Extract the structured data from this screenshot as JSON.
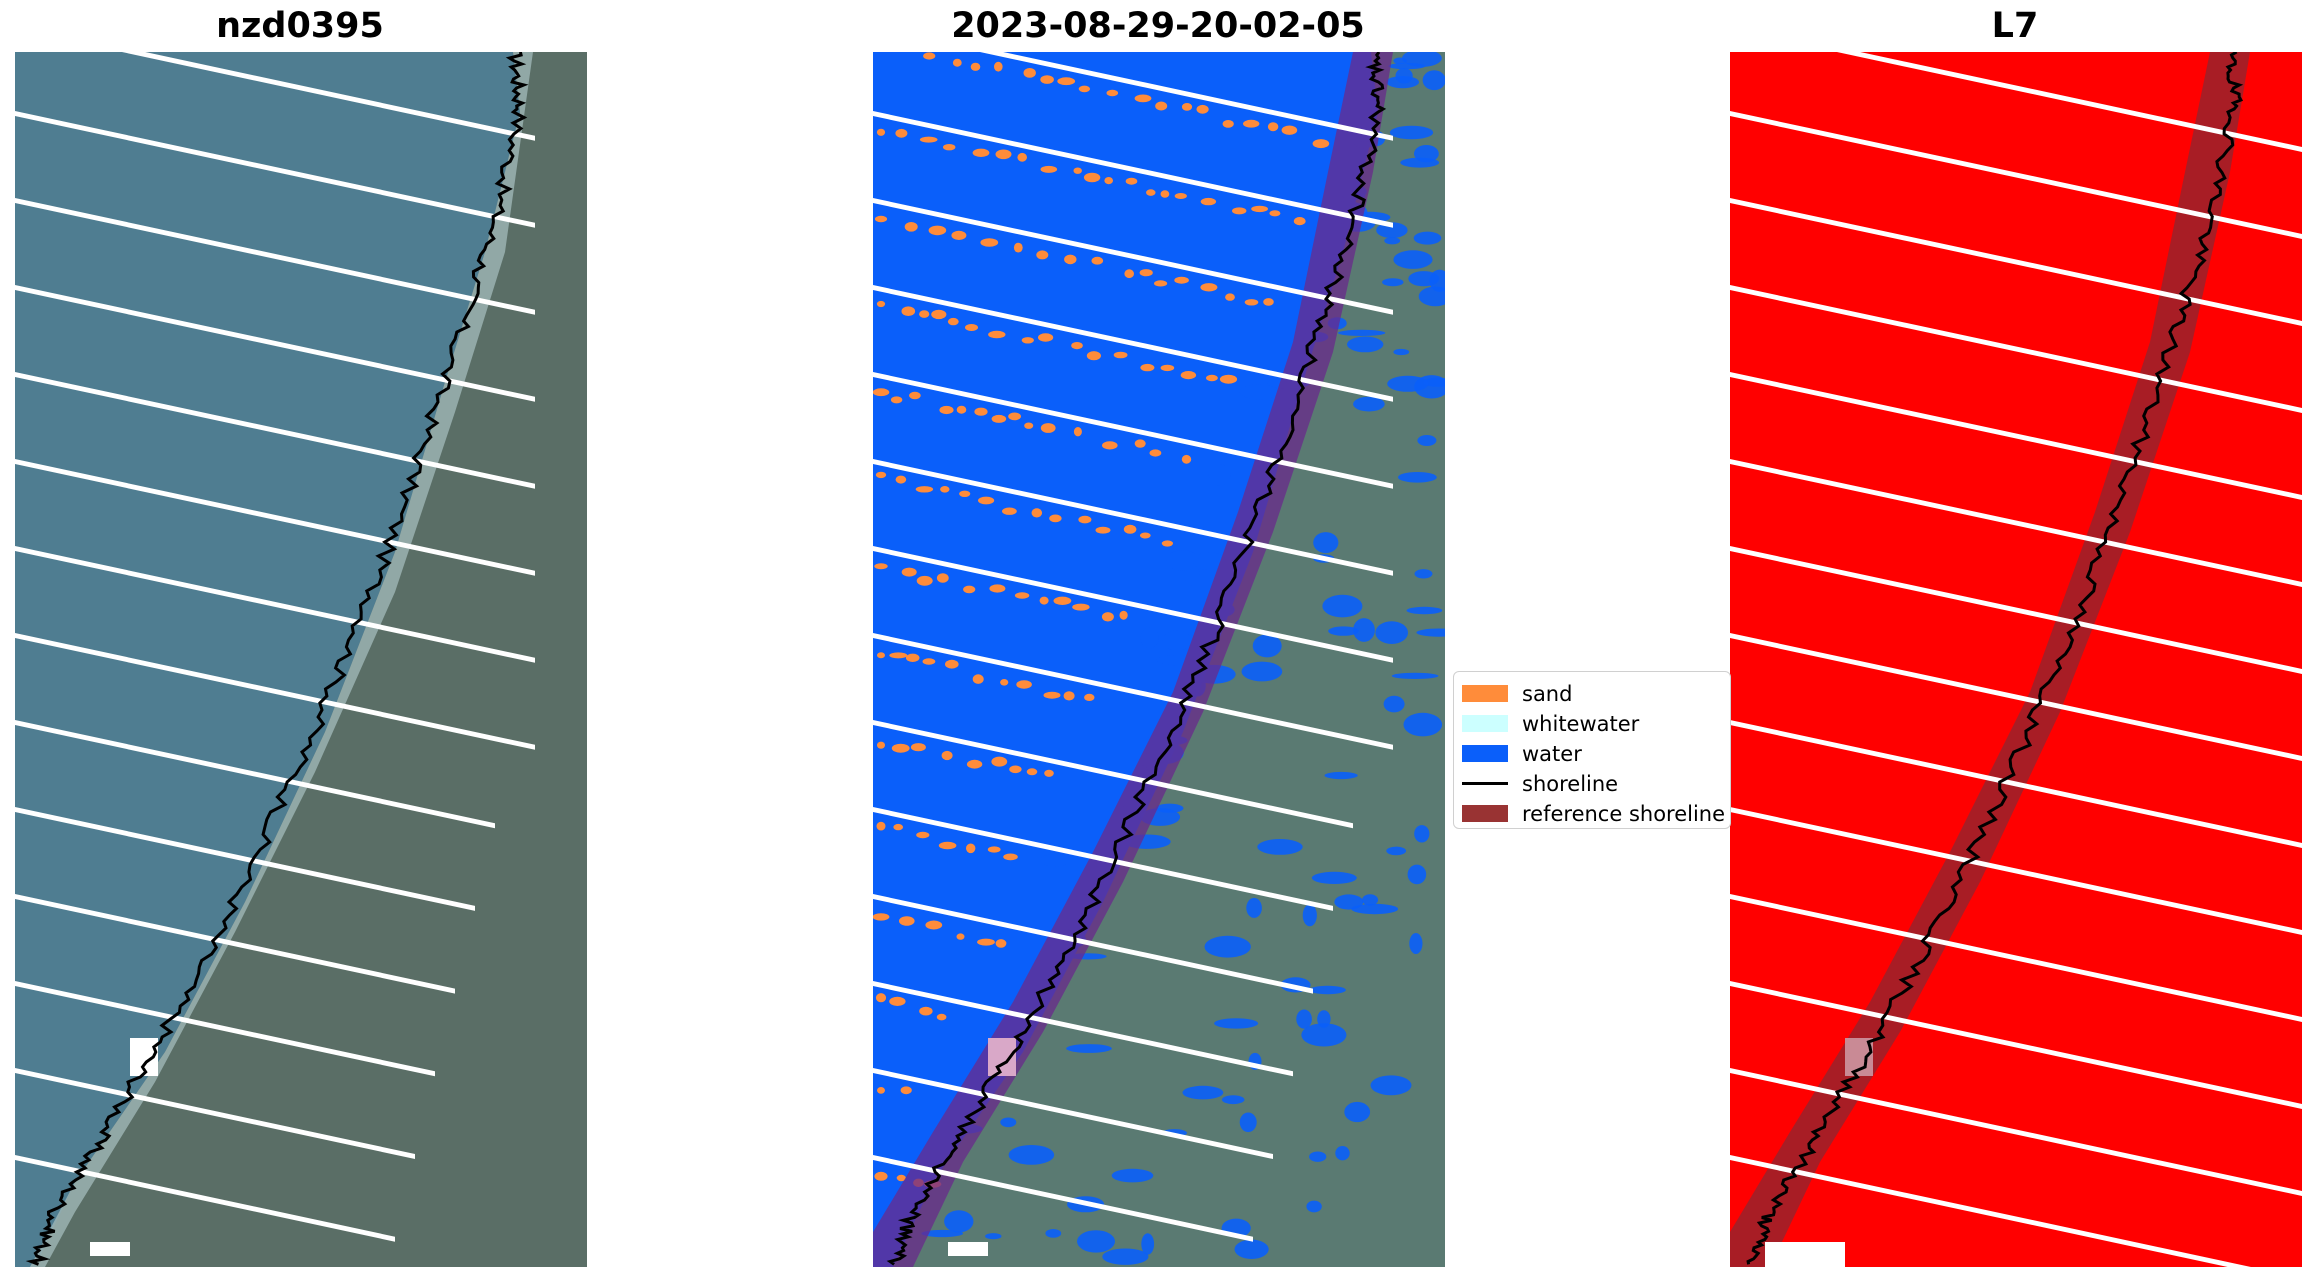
{
  "panels": [
    {
      "title": "nzd0395"
    },
    {
      "title": "2023-08-29-20-02-05"
    },
    {
      "title": "L7"
    }
  ],
  "legend": {
    "items": [
      {
        "label": "sand",
        "color": "#ff8c3a",
        "kind": "patch"
      },
      {
        "label": "whitewater",
        "color": "#ccffff",
        "kind": "patch"
      },
      {
        "label": "water",
        "color": "#0a5ffa",
        "kind": "patch"
      },
      {
        "label": "shoreline",
        "color": "#000000",
        "kind": "line"
      },
      {
        "label": "reference shoreline",
        "color": "#993333",
        "kind": "patch"
      }
    ]
  },
  "colors": {
    "sea": "#4f7d91",
    "land": "#5a6e66",
    "classified_water": "#0a5ffa",
    "sand": "#ff8c3a",
    "mask_red": "#ff0000",
    "reference_band": "#6a2a8c",
    "reference_band_red": "#99222b",
    "shoreline": "#000000",
    "scanline_gap": "#ffffff"
  }
}
